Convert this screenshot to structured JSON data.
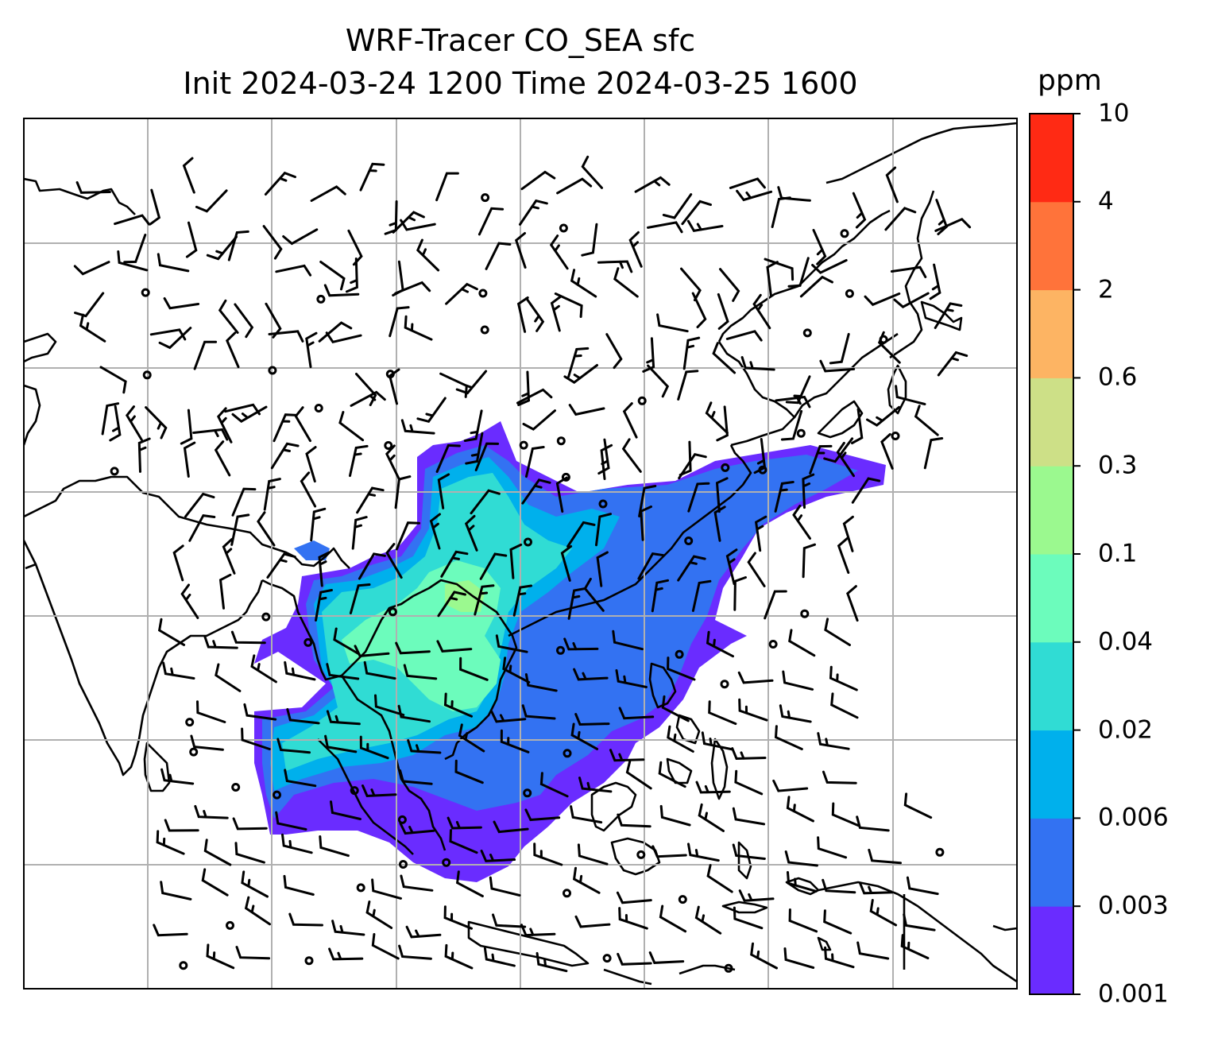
{
  "title": {
    "line1": "WRF-Tracer CO_SEA sfc",
    "line2": "Init 2024-03-24 1200 Time 2024-03-25 1600"
  },
  "colorbar": {
    "unit": "ppm",
    "levels": [
      "0.001",
      "0.003",
      "0.006",
      "0.02",
      "0.04",
      "0.1",
      "0.3",
      "0.6",
      "2",
      "4",
      "10"
    ],
    "colors": [
      "#6a2cff",
      "#3372f2",
      "#00b0ec",
      "#30dcd4",
      "#6cfcbc",
      "#9bf98f",
      "#cde087",
      "#fdb463",
      "#ff733a",
      "#ff2a14"
    ]
  },
  "map": {
    "projection": "regional map, East and Southeast Asia",
    "gridlines": true,
    "plume_levels": [
      "0.003",
      "0.006",
      "0.02",
      "0.04",
      "0.1"
    ],
    "wind_barbs": true
  }
}
